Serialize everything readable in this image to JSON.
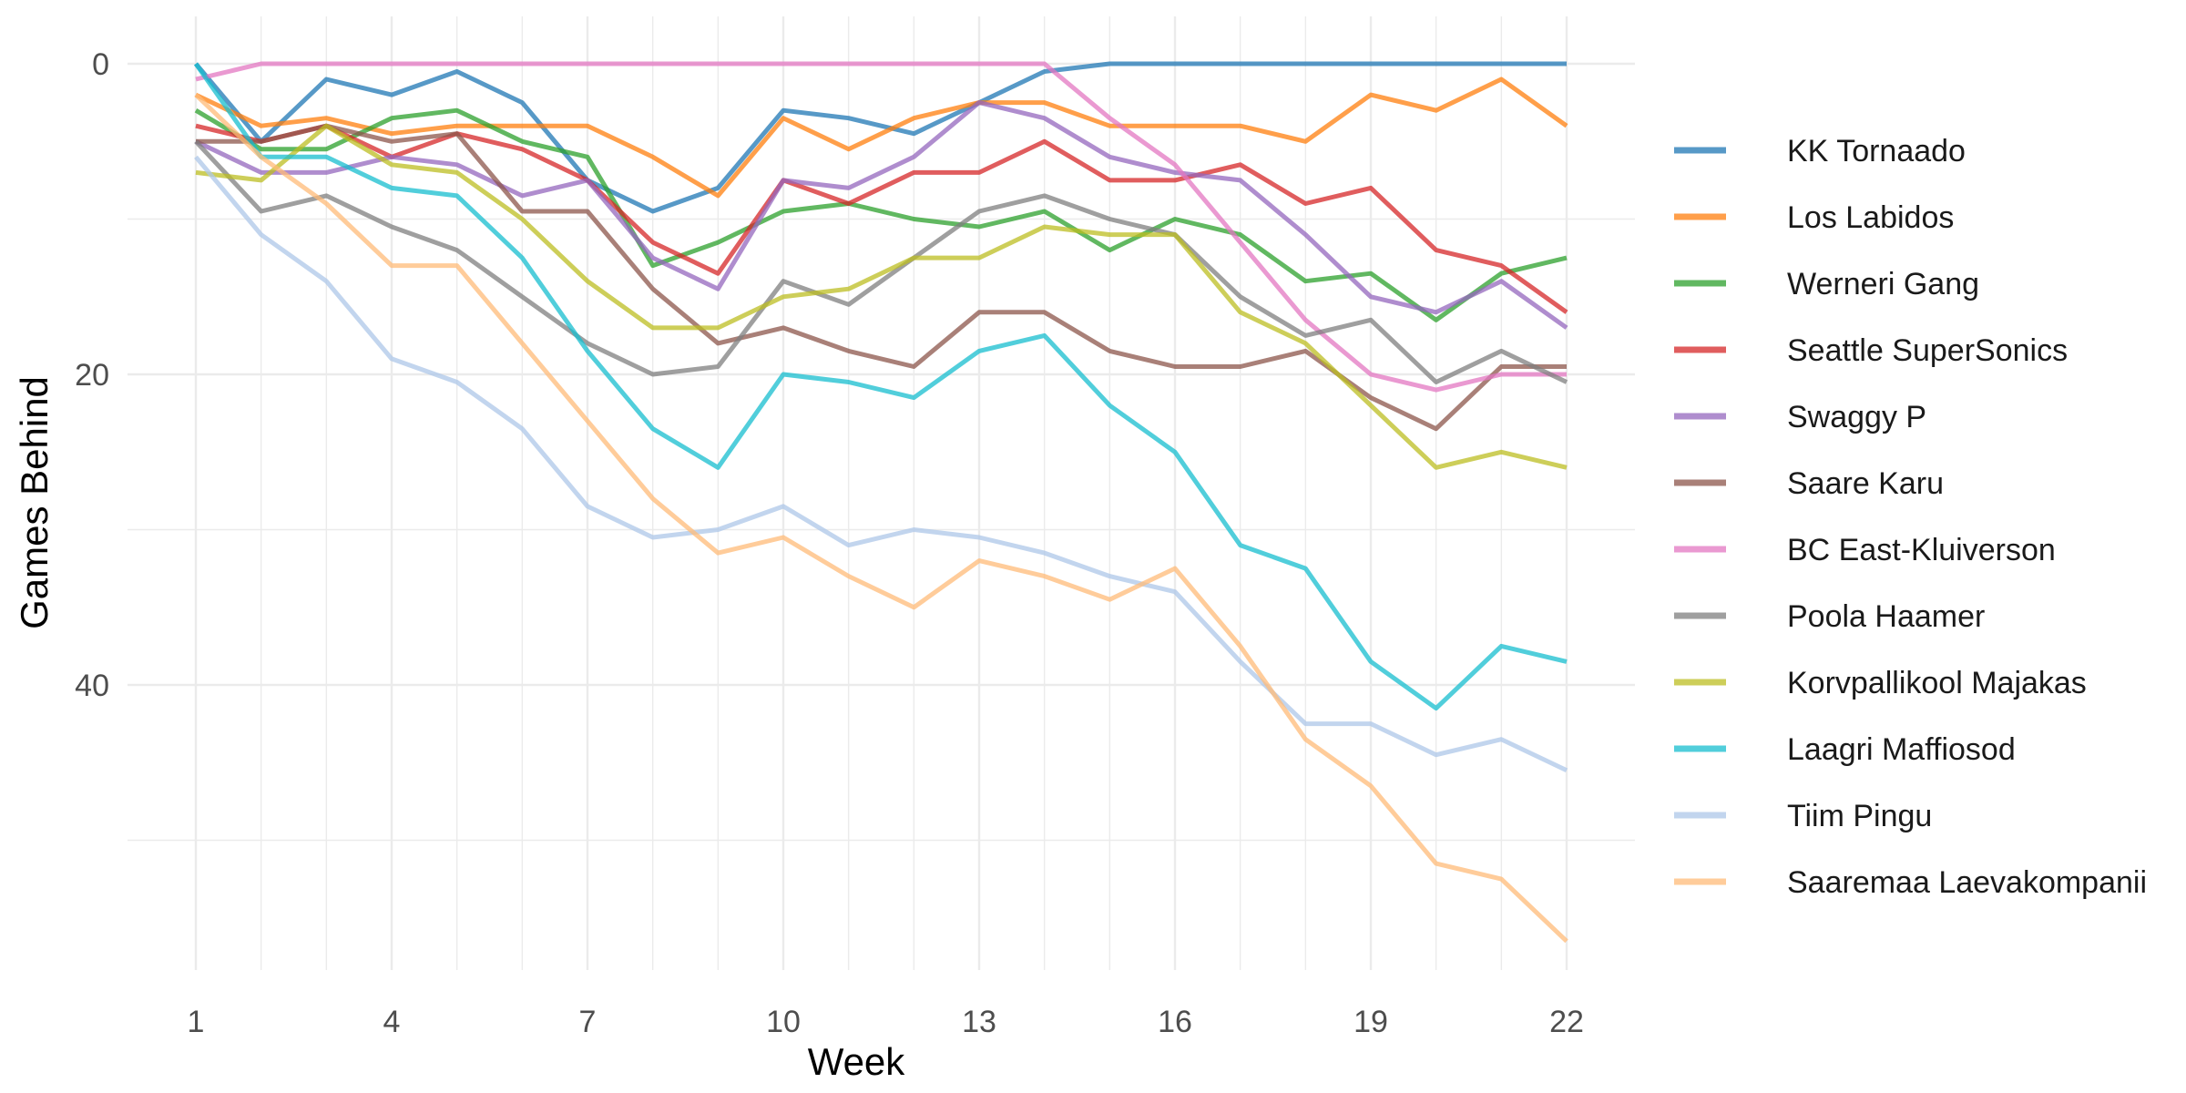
{
  "chart_data": {
    "type": "line",
    "title": "",
    "xlabel": "Week",
    "ylabel": "Games Behind",
    "x": [
      1,
      2,
      3,
      4,
      5,
      6,
      7,
      8,
      9,
      10,
      11,
      12,
      13,
      14,
      15,
      16,
      17,
      18,
      19,
      20,
      21,
      22
    ],
    "xticks": [
      1,
      4,
      7,
      10,
      13,
      16,
      19,
      22
    ],
    "yticks": [
      0,
      20,
      40
    ],
    "xlim": [
      1,
      22
    ],
    "ylim": [
      0,
      58
    ],
    "y_reversed": true,
    "grid": true,
    "legend_position": "right",
    "series": [
      {
        "name": "KK Tornaado",
        "color": "#1f77b4",
        "values": [
          0,
          5,
          1,
          2,
          0.5,
          2.5,
          7.5,
          9.5,
          8,
          3,
          3.5,
          4.5,
          2.5,
          0.5,
          0,
          0,
          0,
          0,
          0,
          0,
          0,
          0
        ]
      },
      {
        "name": "Los Labidos",
        "color": "#ff7f0e",
        "values": [
          2,
          4,
          3.5,
          4.5,
          4,
          4,
          4,
          6,
          8.5,
          3.5,
          5.5,
          3.5,
          2.5,
          2.5,
          4,
          4,
          4,
          5,
          2,
          3,
          1,
          4
        ]
      },
      {
        "name": "Werneri Gang",
        "color": "#2ca02c",
        "values": [
          3,
          5.5,
          5.5,
          3.5,
          3,
          5,
          6,
          13,
          11.5,
          9.5,
          9,
          10,
          10.5,
          9.5,
          12,
          10,
          11,
          14,
          13.5,
          16.5,
          13.5,
          12.5
        ]
      },
      {
        "name": "Seattle SuperSonics",
        "color": "#d62728",
        "values": [
          4,
          5,
          4,
          6,
          4.5,
          5.5,
          7.5,
          11.5,
          13.5,
          7.5,
          9,
          7,
          7,
          5,
          7.5,
          7.5,
          6.5,
          9,
          8,
          12,
          13,
          16
        ]
      },
      {
        "name": "Swaggy P",
        "color": "#9467bd",
        "values": [
          5,
          7,
          7,
          6,
          6.5,
          8.5,
          7.5,
          12.5,
          14.5,
          7.5,
          8,
          6,
          2.5,
          3.5,
          6,
          7,
          7.5,
          11,
          15,
          16,
          14,
          17
        ]
      },
      {
        "name": "Saare Karu",
        "color": "#8c564b",
        "values": [
          5,
          5,
          4,
          5,
          4.5,
          9.5,
          9.5,
          14.5,
          18,
          17,
          18.5,
          19.5,
          16,
          16,
          18.5,
          19.5,
          19.5,
          18.5,
          21.5,
          23.5,
          19.5,
          19.5
        ]
      },
      {
        "name": "BC East-Kluiverson",
        "color": "#e377c2",
        "values": [
          1,
          0,
          0,
          0,
          0,
          0,
          0,
          0,
          0,
          0,
          0,
          0,
          0,
          0,
          3.5,
          6.5,
          11.5,
          16.5,
          20,
          21,
          20,
          20
        ]
      },
      {
        "name": "Poola Haamer",
        "color": "#7f7f7f",
        "values": [
          5,
          9.5,
          8.5,
          10.5,
          12,
          15,
          18,
          20,
          19.5,
          14,
          15.5,
          12.5,
          9.5,
          8.5,
          10,
          11,
          15,
          17.5,
          16.5,
          20.5,
          18.5,
          20.5
        ]
      },
      {
        "name": "Korvpallikool Majakas",
        "color": "#bcbd22",
        "values": [
          7,
          7.5,
          4,
          6.5,
          7,
          10,
          14,
          17,
          17,
          15,
          14.5,
          12.5,
          12.5,
          10.5,
          11,
          11,
          16,
          18,
          22,
          26,
          25,
          26
        ]
      },
      {
        "name": "Laagri Maffiosod",
        "color": "#17becf",
        "values": [
          0,
          6,
          6,
          8,
          8.5,
          12.5,
          18.5,
          23.5,
          26,
          20,
          20.5,
          21.5,
          18.5,
          17.5,
          22,
          25,
          31,
          32.5,
          38.5,
          41.5,
          37.5,
          38.5
        ]
      },
      {
        "name": "Tiim Pingu",
        "color": "#aec7e8",
        "values": [
          6,
          11,
          14,
          19,
          20.5,
          23.5,
          28.5,
          30.5,
          30,
          28.5,
          31,
          30,
          30.5,
          31.5,
          33,
          34,
          38.5,
          42.5,
          42.5,
          44.5,
          43.5,
          45.5
        ]
      },
      {
        "name": "Saaremaa Laevakompanii",
        "color": "#ffbb78",
        "values": [
          2,
          6,
          9,
          13,
          13,
          18,
          23,
          28,
          31.5,
          30.5,
          33,
          35,
          32,
          33,
          34.5,
          32.5,
          37.5,
          43.5,
          46.5,
          51.5,
          52.5,
          56.5
        ]
      }
    ]
  }
}
